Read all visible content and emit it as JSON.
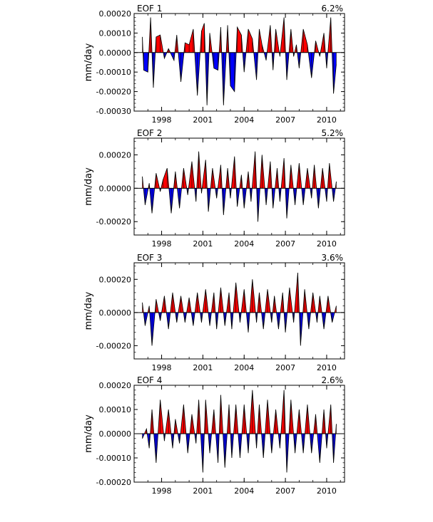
{
  "chart_data": [
    {
      "type": "area",
      "title": "EOF 1",
      "variance_label": "6.2%",
      "ylabel": "mm/day",
      "xlim": [
        1996.0,
        2011.3
      ],
      "ylim": [
        -0.0003,
        0.0002
      ],
      "yticks": [
        {
          "value": 0.0002,
          "label": "0.00020"
        },
        {
          "value": 0.0001,
          "label": "0.00010"
        },
        {
          "value": 0.0,
          "label": "0.00000"
        },
        {
          "value": -0.0001,
          "label": "-0.00010"
        },
        {
          "value": -0.0002,
          "label": "-0.00020"
        },
        {
          "value": -0.0003,
          "label": "-0.00030"
        }
      ],
      "xticks": [
        {
          "value": 1998,
          "label": "1998"
        },
        {
          "value": 2001,
          "label": "2001"
        },
        {
          "value": 2004,
          "label": "2004"
        },
        {
          "value": 2007,
          "label": "2007"
        },
        {
          "value": 2010,
          "label": "2010"
        }
      ],
      "positive_color": "#ff0000",
      "negative_color": "#0000ff",
      "line_color": "#000000",
      "points": [
        [
          1996.6,
          8e-05
        ],
        [
          1996.7,
          -9e-05
        ],
        [
          1997.0,
          -0.0001
        ],
        [
          1997.2,
          0.00018
        ],
        [
          1997.4,
          -0.00018
        ],
        [
          1997.6,
          8e-05
        ],
        [
          1997.9,
          9e-05
        ],
        [
          1998.2,
          -3e-05
        ],
        [
          1998.5,
          2e-05
        ],
        [
          1998.9,
          -4e-05
        ],
        [
          1999.1,
          9e-05
        ],
        [
          1999.4,
          -0.00015
        ],
        [
          1999.7,
          5e-05
        ],
        [
          2000.0,
          4e-05
        ],
        [
          2000.3,
          0.00012
        ],
        [
          2000.6,
          -0.00022
        ],
        [
          2000.9,
          0.00011
        ],
        [
          2001.1,
          0.00015
        ],
        [
          2001.3,
          -0.00027
        ],
        [
          2001.5,
          0.0001
        ],
        [
          2001.8,
          -8e-05
        ],
        [
          2002.1,
          -9e-05
        ],
        [
          2002.3,
          0.00013
        ],
        [
          2002.5,
          -0.00027
        ],
        [
          2002.8,
          0.00014
        ],
        [
          2003.0,
          -0.00017
        ],
        [
          2003.3,
          -0.0002
        ],
        [
          2003.5,
          0.00013
        ],
        [
          2003.8,
          9e-05
        ],
        [
          2004.0,
          -0.0001
        ],
        [
          2004.3,
          0.00012
        ],
        [
          2004.6,
          7e-05
        ],
        [
          2004.9,
          -0.00014
        ],
        [
          2005.1,
          0.00012
        ],
        [
          2005.3,
          4e-05
        ],
        [
          2005.6,
          -4e-05
        ],
        [
          2005.9,
          0.00014
        ],
        [
          2006.1,
          -9e-05
        ],
        [
          2006.3,
          0.00012
        ],
        [
          2006.6,
          -2e-05
        ],
        [
          2006.9,
          0.00018
        ],
        [
          2007.1,
          -0.00014
        ],
        [
          2007.4,
          0.00012
        ],
        [
          2007.6,
          -2e-05
        ],
        [
          2007.8,
          4e-05
        ],
        [
          2008.0,
          -8e-05
        ],
        [
          2008.3,
          0.00012
        ],
        [
          2008.6,
          4e-05
        ],
        [
          2008.9,
          -0.00013
        ],
        [
          2009.2,
          6e-05
        ],
        [
          2009.5,
          -2e-05
        ],
        [
          2009.8,
          0.0001
        ],
        [
          2010.0,
          -8e-05
        ],
        [
          2010.3,
          0.00018
        ],
        [
          2010.5,
          -0.00021
        ],
        [
          2010.7,
          -6e-05
        ]
      ]
    },
    {
      "type": "area",
      "title": "EOF 2",
      "variance_label": "5.2%",
      "ylabel": "mm/day",
      "xlim": [
        1996.0,
        2011.3
      ],
      "ylim": [
        -0.00028,
        0.0003
      ],
      "yticks": [
        {
          "value": 0.0002,
          "label": "0.00020"
        },
        {
          "value": 0.0,
          "label": "0.00000"
        },
        {
          "value": -0.0002,
          "label": "-0.00020"
        }
      ],
      "xticks": [
        {
          "value": 1998,
          "label": "1998"
        },
        {
          "value": 2001,
          "label": "2001"
        },
        {
          "value": 2004,
          "label": "2004"
        },
        {
          "value": 2007,
          "label": "2007"
        },
        {
          "value": 2010,
          "label": "2010"
        }
      ],
      "positive_color": "#ff0000",
      "negative_color": "#0000ff",
      "line_color": "#000000",
      "points": [
        [
          1996.6,
          7e-05
        ],
        [
          1996.8,
          -0.0001
        ],
        [
          1997.1,
          3e-05
        ],
        [
          1997.3,
          -0.00015
        ],
        [
          1997.6,
          9e-05
        ],
        [
          1997.9,
          -2e-05
        ],
        [
          1998.1,
          5e-05
        ],
        [
          1998.4,
          0.00012
        ],
        [
          1998.7,
          -0.00015
        ],
        [
          1999.0,
          0.0001
        ],
        [
          1999.3,
          -0.00012
        ],
        [
          1999.6,
          0.00012
        ],
        [
          1999.9,
          -4e-05
        ],
        [
          2000.2,
          0.00016
        ],
        [
          2000.5,
          -8e-05
        ],
        [
          2000.7,
          0.00022
        ],
        [
          2000.9,
          -3e-05
        ],
        [
          2001.2,
          0.00017
        ],
        [
          2001.4,
          -0.00014
        ],
        [
          2001.7,
          0.00012
        ],
        [
          2002.0,
          -6e-05
        ],
        [
          2002.3,
          0.00014
        ],
        [
          2002.5,
          -0.00016
        ],
        [
          2002.8,
          0.00012
        ],
        [
          2003.0,
          -6e-05
        ],
        [
          2003.3,
          0.00019
        ],
        [
          2003.5,
          -0.00011
        ],
        [
          2003.8,
          8e-05
        ],
        [
          2004.0,
          -0.00012
        ],
        [
          2004.3,
          0.0001
        ],
        [
          2004.5,
          -8e-05
        ],
        [
          2004.8,
          0.00022
        ],
        [
          2005.0,
          -0.0002
        ],
        [
          2005.3,
          0.0002
        ],
        [
          2005.6,
          -0.0001
        ],
        [
          2005.9,
          0.00016
        ],
        [
          2006.1,
          -0.00012
        ],
        [
          2006.4,
          0.00012
        ],
        [
          2006.6,
          -8e-05
        ],
        [
          2006.9,
          0.00018
        ],
        [
          2007.1,
          -0.00018
        ],
        [
          2007.4,
          0.00014
        ],
        [
          2007.7,
          -0.0001
        ],
        [
          2008.0,
          0.00015
        ],
        [
          2008.3,
          -0.0001
        ],
        [
          2008.6,
          0.00012
        ],
        [
          2008.9,
          -6e-05
        ],
        [
          2009.1,
          0.00014
        ],
        [
          2009.4,
          -0.00012
        ],
        [
          2009.7,
          0.00012
        ],
        [
          2010.0,
          -8e-05
        ],
        [
          2010.2,
          0.00015
        ],
        [
          2010.5,
          -8e-05
        ],
        [
          2010.7,
          4e-05
        ]
      ]
    },
    {
      "type": "area",
      "title": "EOF 3",
      "variance_label": "3.6%",
      "ylabel": "mm/day",
      "xlim": [
        1996.0,
        2011.3
      ],
      "ylim": [
        -0.00028,
        0.0003
      ],
      "yticks": [
        {
          "value": 0.0002,
          "label": "0.00020"
        },
        {
          "value": 0.0,
          "label": "0.00000"
        },
        {
          "value": -0.0002,
          "label": "-0.00020"
        }
      ],
      "xticks": [
        {
          "value": 1998,
          "label": "1998"
        },
        {
          "value": 2001,
          "label": "2001"
        },
        {
          "value": 2004,
          "label": "2004"
        },
        {
          "value": 2007,
          "label": "2007"
        },
        {
          "value": 2010,
          "label": "2010"
        }
      ],
      "positive_color": "#ff0000",
      "negative_color": "#0000ff",
      "line_color": "#000000",
      "points": [
        [
          1996.6,
          6e-05
        ],
        [
          1996.8,
          -8e-05
        ],
        [
          1997.1,
          4e-05
        ],
        [
          1997.3,
          -0.0002
        ],
        [
          1997.6,
          8e-05
        ],
        [
          1997.9,
          -5e-05
        ],
        [
          1998.2,
          0.0001
        ],
        [
          1998.5,
          -0.0001
        ],
        [
          1998.8,
          0.00012
        ],
        [
          1999.1,
          -6e-05
        ],
        [
          1999.4,
          0.0001
        ],
        [
          1999.7,
          -6e-05
        ],
        [
          2000.0,
          9e-05
        ],
        [
          2000.3,
          -8e-05
        ],
        [
          2000.6,
          0.00012
        ],
        [
          2000.9,
          -6e-05
        ],
        [
          2001.2,
          0.00014
        ],
        [
          2001.5,
          -8e-05
        ],
        [
          2001.8,
          0.00012
        ],
        [
          2002.0,
          -0.0001
        ],
        [
          2002.3,
          0.00015
        ],
        [
          2002.6,
          -8e-05
        ],
        [
          2002.9,
          0.00012
        ],
        [
          2003.1,
          -0.0001
        ],
        [
          2003.4,
          0.00018
        ],
        [
          2003.7,
          -6e-05
        ],
        [
          2004.0,
          0.00014
        ],
        [
          2004.3,
          -0.00012
        ],
        [
          2004.6,
          0.0002
        ],
        [
          2004.9,
          -6e-05
        ],
        [
          2005.1,
          0.00012
        ],
        [
          2005.4,
          -0.0001
        ],
        [
          2005.7,
          0.00014
        ],
        [
          2006.0,
          -6e-05
        ],
        [
          2006.2,
          0.0001
        ],
        [
          2006.5,
          -0.0001
        ],
        [
          2006.8,
          0.00012
        ],
        [
          2007.0,
          -0.00012
        ],
        [
          2007.3,
          0.00015
        ],
        [
          2007.6,
          -6e-05
        ],
        [
          2007.9,
          0.00024
        ],
        [
          2008.1,
          -0.0002
        ],
        [
          2008.4,
          0.00014
        ],
        [
          2008.7,
          -0.0001
        ],
        [
          2009.0,
          0.00012
        ],
        [
          2009.3,
          -6e-05
        ],
        [
          2009.5,
          0.0001
        ],
        [
          2009.8,
          -0.0001
        ],
        [
          2010.1,
          0.0001
        ],
        [
          2010.4,
          -6e-05
        ],
        [
          2010.7,
          4e-05
        ]
      ]
    },
    {
      "type": "area",
      "title": "EOF 4",
      "variance_label": "2.6%",
      "ylabel": "mm/day",
      "xlim": [
        1996.0,
        2011.3
      ],
      "ylim": [
        -0.0002,
        0.0002
      ],
      "yticks": [
        {
          "value": 0.0002,
          "label": "0.00020"
        },
        {
          "value": 0.0001,
          "label": "0.00010"
        },
        {
          "value": 0.0,
          "label": "0.00000"
        },
        {
          "value": -0.0001,
          "label": "-0.00010"
        },
        {
          "value": -0.0002,
          "label": "-0.00020"
        }
      ],
      "xticks": [
        {
          "value": 1998,
          "label": "1998"
        },
        {
          "value": 2001,
          "label": "2001"
        },
        {
          "value": 2004,
          "label": "2004"
        },
        {
          "value": 2007,
          "label": "2007"
        },
        {
          "value": 2010,
          "label": "2010"
        }
      ],
      "positive_color": "#ff0000",
      "negative_color": "#0000ff",
      "line_color": "#000000",
      "points": [
        [
          1996.6,
          -2e-05
        ],
        [
          1996.9,
          2e-05
        ],
        [
          1997.1,
          -6e-05
        ],
        [
          1997.3,
          0.0001
        ],
        [
          1997.6,
          -0.00012
        ],
        [
          1997.9,
          0.00014
        ],
        [
          1998.2,
          -3e-05
        ],
        [
          1998.5,
          0.0001
        ],
        [
          1998.8,
          -6e-05
        ],
        [
          1999.0,
          6e-05
        ],
        [
          1999.3,
          -4e-05
        ],
        [
          1999.6,
          0.00012
        ],
        [
          1999.9,
          -8e-05
        ],
        [
          2000.2,
          8e-05
        ],
        [
          2000.5,
          -4e-05
        ],
        [
          2000.7,
          0.00014
        ],
        [
          2001.0,
          -0.00016
        ],
        [
          2001.2,
          0.00014
        ],
        [
          2001.5,
          -8e-05
        ],
        [
          2001.8,
          0.0001
        ],
        [
          2002.1,
          -0.00012
        ],
        [
          2002.3,
          0.00016
        ],
        [
          2002.6,
          -0.00014
        ],
        [
          2002.9,
          0.00012
        ],
        [
          2003.1,
          -0.0001
        ],
        [
          2003.4,
          0.00012
        ],
        [
          2003.7,
          -0.0001
        ],
        [
          2004.0,
          0.00012
        ],
        [
          2004.3,
          -8e-05
        ],
        [
          2004.6,
          0.00018
        ],
        [
          2004.9,
          -6e-05
        ],
        [
          2005.1,
          0.00012
        ],
        [
          2005.4,
          -0.0001
        ],
        [
          2005.7,
          0.00014
        ],
        [
          2006.0,
          -8e-05
        ],
        [
          2006.3,
          0.0001
        ],
        [
          2006.6,
          -6e-05
        ],
        [
          2006.9,
          0.00018
        ],
        [
          2007.1,
          -0.00016
        ],
        [
          2007.4,
          0.00014
        ],
        [
          2007.7,
          -8e-05
        ],
        [
          2008.0,
          0.0001
        ],
        [
          2008.3,
          -8e-05
        ],
        [
          2008.6,
          0.00012
        ],
        [
          2008.9,
          -8e-05
        ],
        [
          2009.2,
          8e-05
        ],
        [
          2009.5,
          -0.00012
        ],
        [
          2009.8,
          0.0001
        ],
        [
          2010.0,
          -6e-05
        ],
        [
          2010.3,
          0.00012
        ],
        [
          2010.5,
          -0.00012
        ],
        [
          2010.7,
          4e-05
        ]
      ]
    }
  ]
}
